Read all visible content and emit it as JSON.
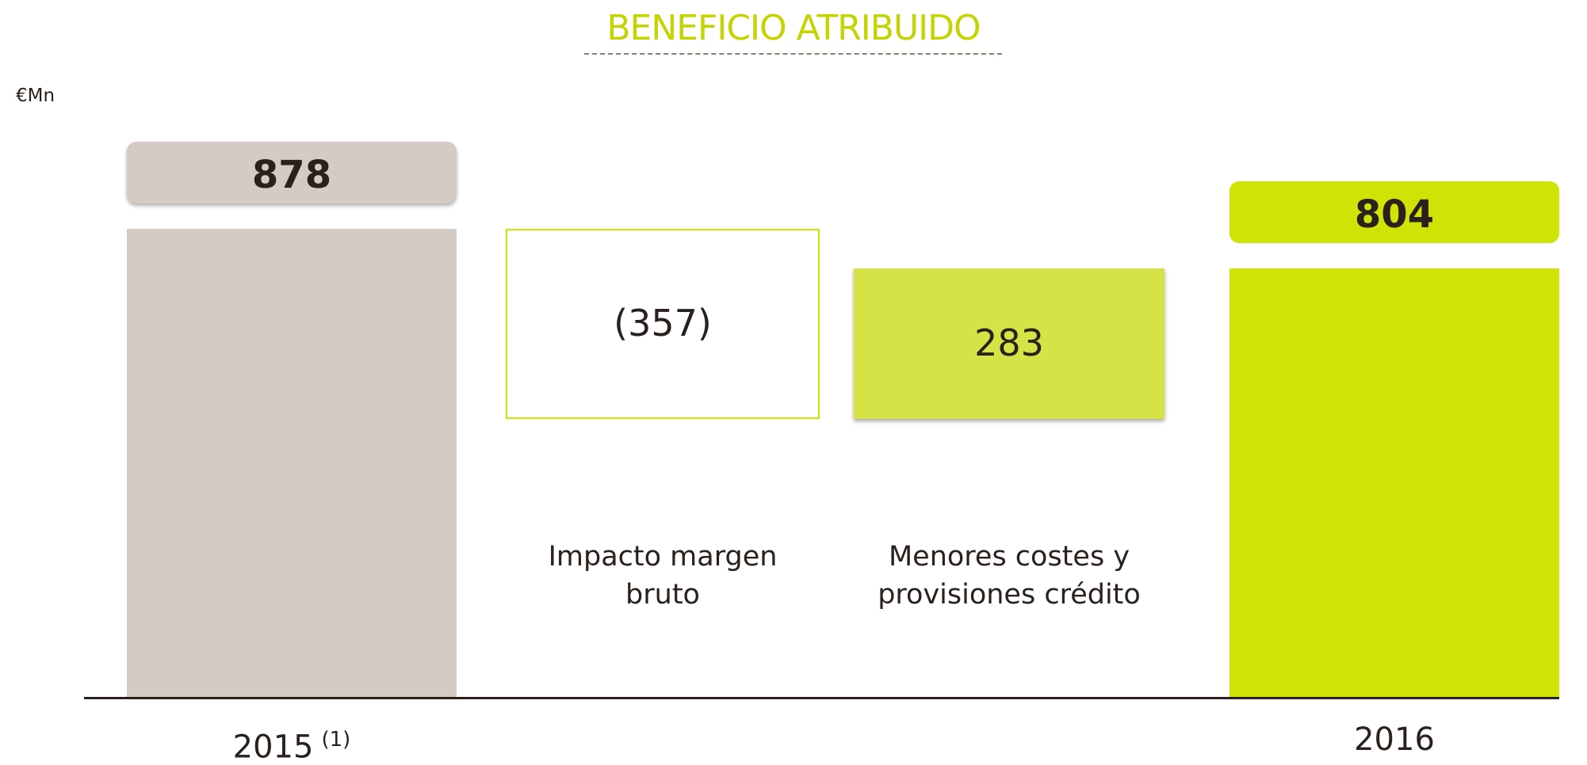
{
  "chart_data": {
    "type": "waterfall",
    "title": "BENEFICIO ATRIBUIDO",
    "unit_label": "€Mn",
    "categories": [
      "2015",
      "Impacto margen bruto",
      "Menores costes y provisiones crédito",
      "2016"
    ],
    "category_note": "(1)",
    "values": [
      878,
      -357,
      283,
      804
    ],
    "value_labels": [
      "878",
      "(357)",
      "283",
      "804"
    ],
    "colors": [
      "#d5cac6",
      "#ffffff",
      "#d6e346",
      "#d0e307"
    ]
  }
}
